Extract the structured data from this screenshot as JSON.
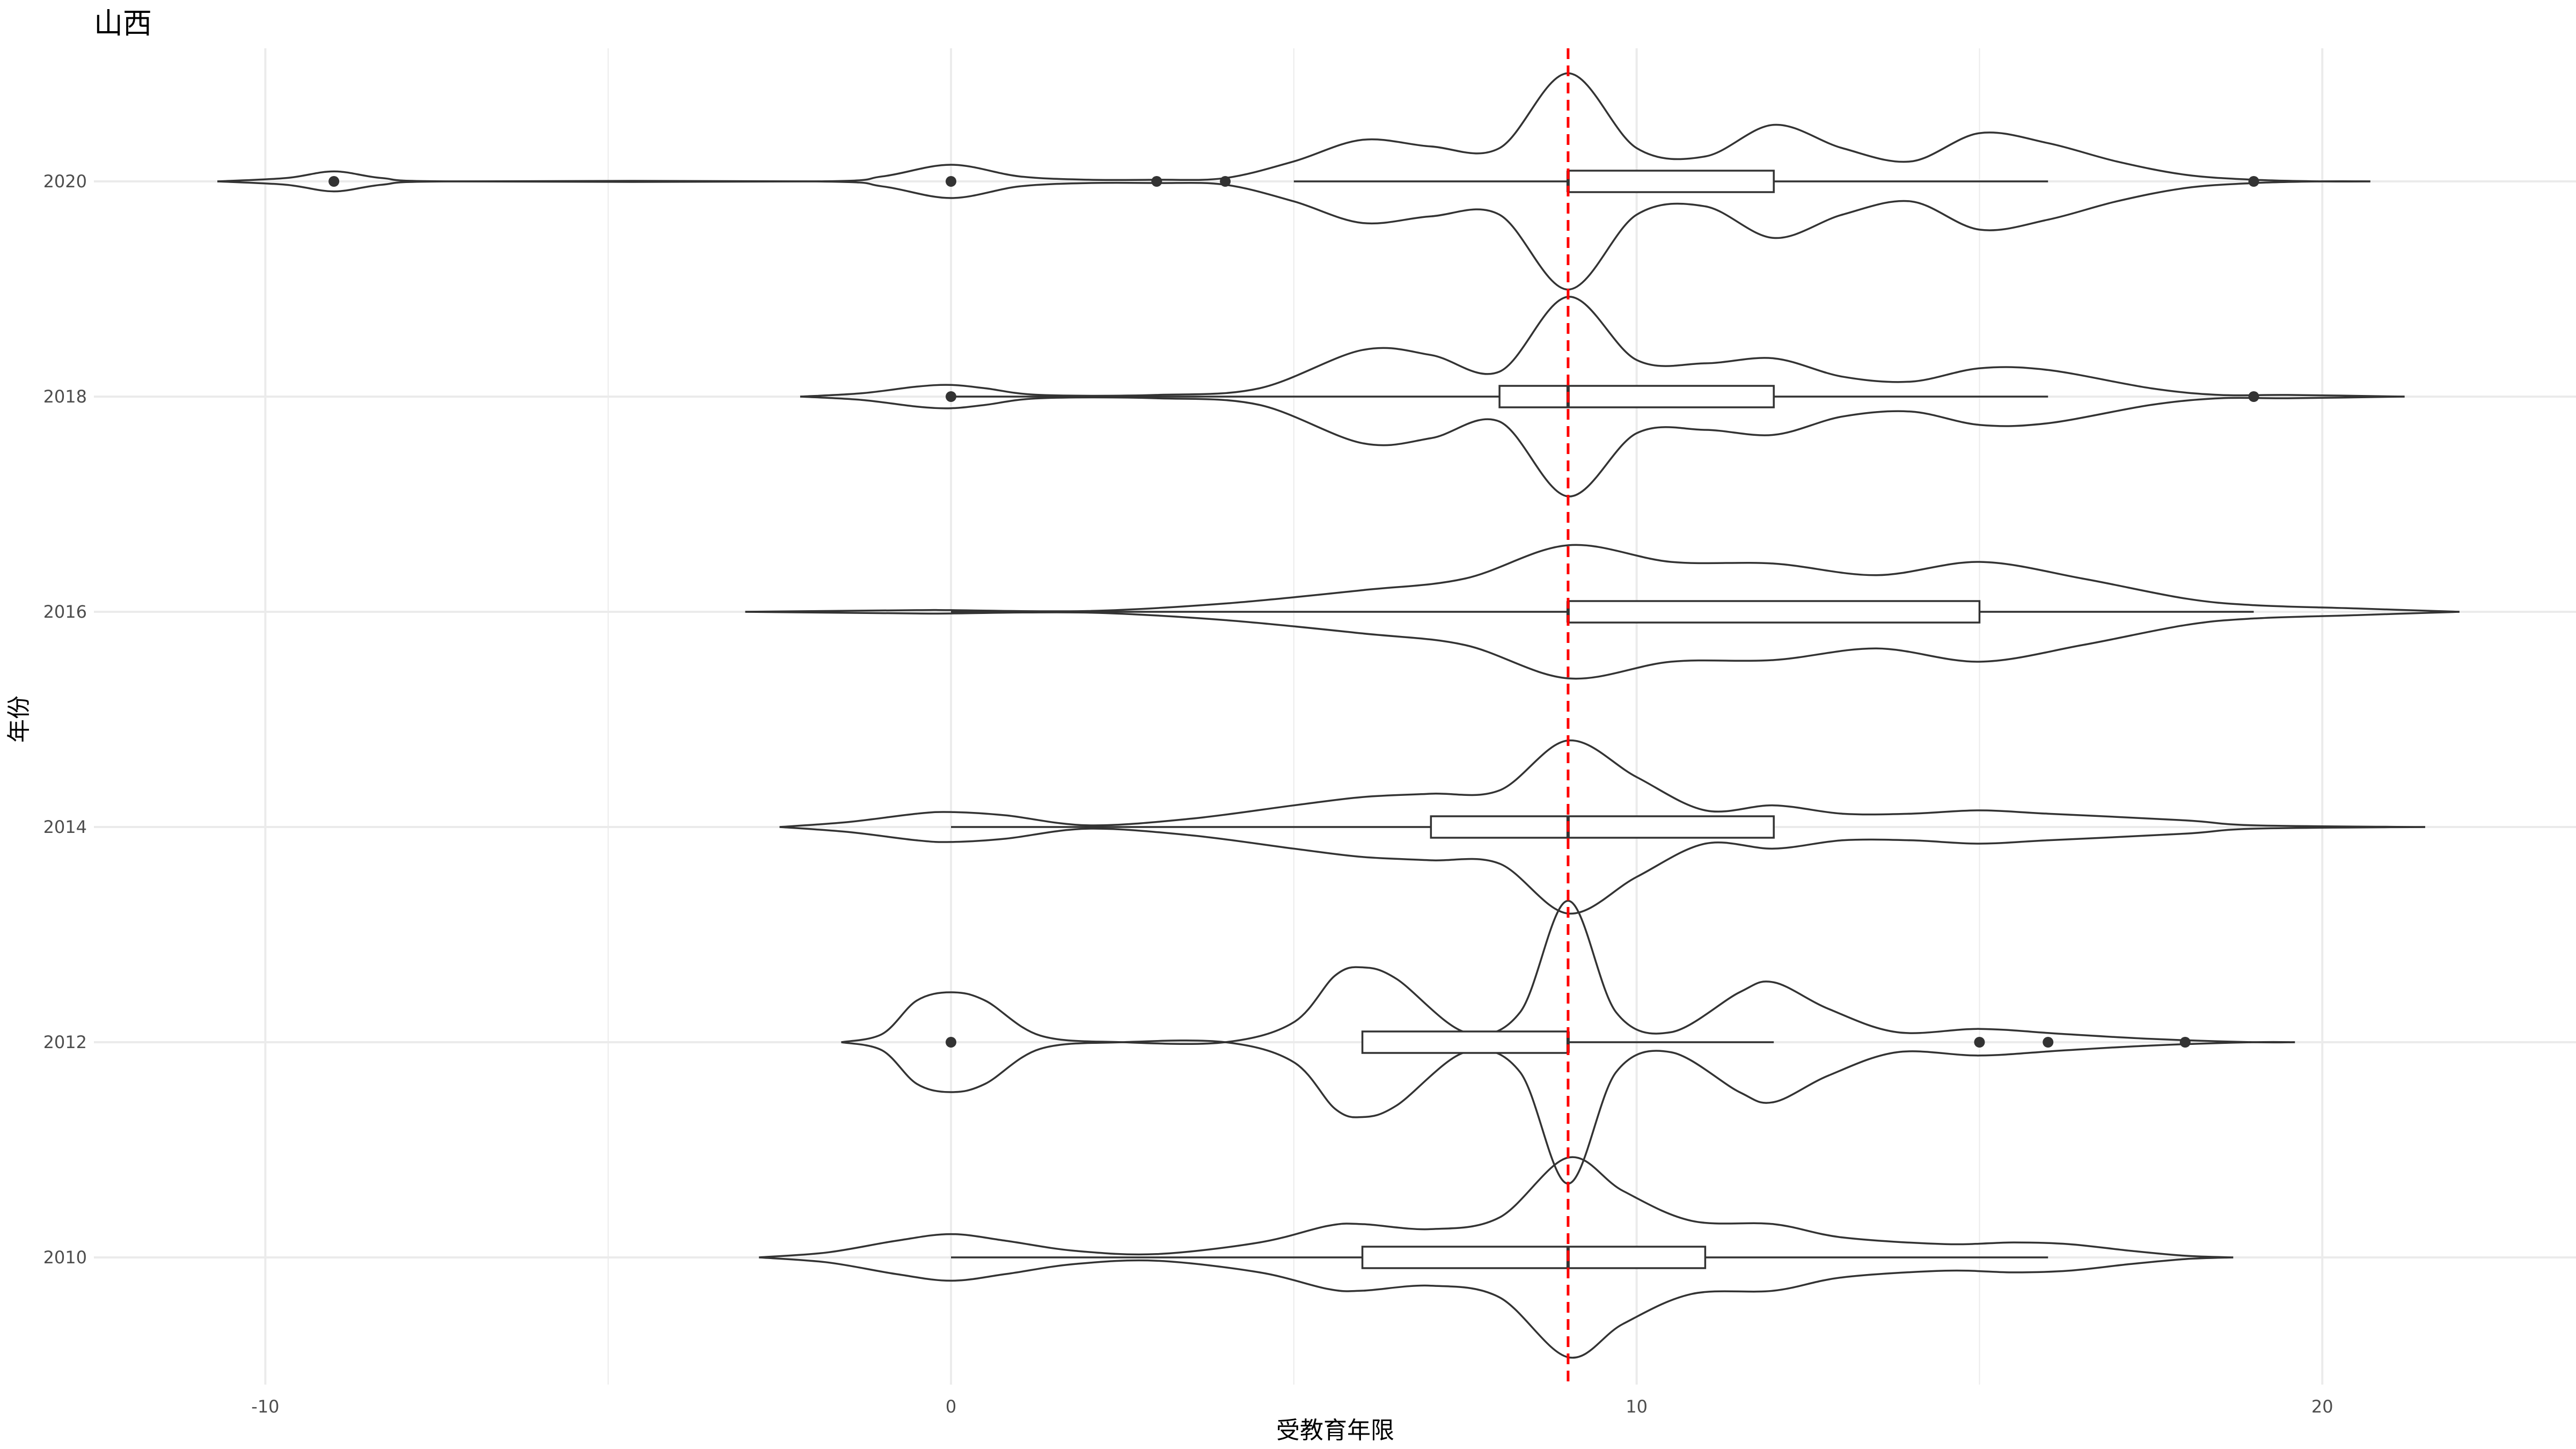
{
  "chart_data": {
    "type": "violin",
    "title": "山西",
    "xlabel": "受教育年限",
    "ylabel": "年份",
    "xlim": [
      -12.5,
      23.7
    ],
    "x_ticks": [
      -10,
      0,
      10,
      20
    ],
    "x_tick_labels": [
      "-10",
      "0",
      "10",
      "20"
    ],
    "categories": [
      "2010",
      "2012",
      "2014",
      "2016",
      "2018",
      "2020"
    ],
    "reference_line": {
      "x": 9,
      "color": "#ff0000",
      "style": "dashed"
    },
    "grid": true,
    "legend": "none",
    "series": [
      {
        "year": "2010",
        "violin_range": [
          -2.8,
          18.7
        ],
        "density": [
          [
            -2.8,
            0
          ],
          [
            -1.8,
            0.03
          ],
          [
            -0.8,
            0.1
          ],
          [
            0,
            0.14
          ],
          [
            0.8,
            0.1
          ],
          [
            1.8,
            0.04
          ],
          [
            3,
            0.02
          ],
          [
            4.5,
            0.09
          ],
          [
            5.5,
            0.19
          ],
          [
            6,
            0.2
          ],
          [
            7,
            0.17
          ],
          [
            8,
            0.24
          ],
          [
            9,
            0.6
          ],
          [
            9.8,
            0.4
          ],
          [
            10.8,
            0.22
          ],
          [
            12,
            0.2
          ],
          [
            13,
            0.12
          ],
          [
            14.5,
            0.08
          ],
          [
            15.5,
            0.09
          ],
          [
            16.3,
            0.08
          ],
          [
            17.2,
            0.04
          ],
          [
            18,
            0.01
          ],
          [
            18.7,
            0
          ]
        ],
        "box": {
          "q1": 6,
          "median": 9,
          "q3": 11,
          "whisker_low": 0,
          "whisker_high": 16
        },
        "outliers": []
      },
      {
        "year": "2012",
        "violin_range": [
          -1.6,
          19.6
        ],
        "density": [
          [
            -1.6,
            0
          ],
          [
            -1,
            0.05
          ],
          [
            -0.5,
            0.25
          ],
          [
            0,
            0.3
          ],
          [
            0.5,
            0.25
          ],
          [
            1.3,
            0.04
          ],
          [
            2.5,
            0
          ],
          [
            4,
            0
          ],
          [
            5,
            0.12
          ],
          [
            5.6,
            0.4
          ],
          [
            6,
            0.45
          ],
          [
            6.5,
            0.38
          ],
          [
            7.5,
            0.06
          ],
          [
            8.3,
            0.18
          ],
          [
            9,
            0.85
          ],
          [
            9.7,
            0.18
          ],
          [
            10.5,
            0.06
          ],
          [
            11.5,
            0.3
          ],
          [
            12,
            0.36
          ],
          [
            12.8,
            0.2
          ],
          [
            13.8,
            0.06
          ],
          [
            15,
            0.08
          ],
          [
            16.2,
            0.05
          ],
          [
            17.5,
            0.02
          ],
          [
            19,
            0
          ],
          [
            19.6,
            0
          ]
        ],
        "box": {
          "q1": 6,
          "median": 9,
          "q3": 9,
          "whisker_low": 6,
          "whisker_high": 12
        },
        "outliers": [
          0,
          15,
          16,
          18
        ]
      },
      {
        "year": "2014",
        "violin_range": [
          -2.5,
          21.5
        ],
        "density": [
          [
            -2.5,
            0
          ],
          [
            -1.5,
            0.03
          ],
          [
            -0.5,
            0.08
          ],
          [
            0,
            0.09
          ],
          [
            0.8,
            0.07
          ],
          [
            2,
            0.01
          ],
          [
            3.5,
            0.05
          ],
          [
            5,
            0.13
          ],
          [
            6,
            0.18
          ],
          [
            7,
            0.2
          ],
          [
            8,
            0.22
          ],
          [
            9,
            0.52
          ],
          [
            10,
            0.3
          ],
          [
            11,
            0.1
          ],
          [
            12,
            0.13
          ],
          [
            13,
            0.08
          ],
          [
            14,
            0.08
          ],
          [
            15,
            0.1
          ],
          [
            16,
            0.08
          ],
          [
            18,
            0.04
          ],
          [
            19,
            0.01
          ],
          [
            21.5,
            0
          ]
        ],
        "box": {
          "q1": 7,
          "median": 9,
          "q3": 12,
          "whisker_low": 0,
          "whisker_high": 12
        },
        "outliers": []
      },
      {
        "year": "2016",
        "violin_range": [
          -3,
          22
        ],
        "density": [
          [
            -3,
            0
          ],
          [
            -0.5,
            0.01
          ],
          [
            0,
            0.01
          ],
          [
            2,
            0.005
          ],
          [
            4,
            0.05
          ],
          [
            6,
            0.13
          ],
          [
            7.5,
            0.2
          ],
          [
            9,
            0.4
          ],
          [
            10.5,
            0.3
          ],
          [
            12,
            0.29
          ],
          [
            13.5,
            0.22
          ],
          [
            15,
            0.3
          ],
          [
            16.5,
            0.2
          ],
          [
            18,
            0.08
          ],
          [
            19,
            0.04
          ],
          [
            20.5,
            0.02
          ],
          [
            22,
            0
          ]
        ],
        "box": {
          "q1": 9,
          "median": 9,
          "q3": 15,
          "whisker_low": 0,
          "whisker_high": 19
        },
        "outliers": []
      },
      {
        "year": "2018",
        "violin_range": [
          -2.2,
          21.2
        ],
        "density": [
          [
            -2.2,
            0
          ],
          [
            -1.3,
            0.02
          ],
          [
            -0.5,
            0.06
          ],
          [
            0,
            0.07
          ],
          [
            0.5,
            0.05
          ],
          [
            1.3,
            0.01
          ],
          [
            3,
            0.01
          ],
          [
            4.5,
            0.05
          ],
          [
            6,
            0.28
          ],
          [
            7,
            0.25
          ],
          [
            8,
            0.15
          ],
          [
            9,
            0.6
          ],
          [
            10,
            0.22
          ],
          [
            11,
            0.2
          ],
          [
            12,
            0.23
          ],
          [
            13,
            0.12
          ],
          [
            14,
            0.09
          ],
          [
            15,
            0.17
          ],
          [
            16,
            0.16
          ],
          [
            17.5,
            0.05
          ],
          [
            18.5,
            0.01
          ],
          [
            19.5,
            0.01
          ],
          [
            21.2,
            0
          ]
        ],
        "box": {
          "q1": 8,
          "median": 9,
          "q3": 12,
          "whisker_low": 0,
          "whisker_high": 16
        },
        "outliers": [
          0,
          19
        ]
      },
      {
        "year": "2020",
        "violin_range": [
          -10.7,
          20.7
        ],
        "density": [
          [
            -10.7,
            0
          ],
          [
            -9.7,
            0.02
          ],
          [
            -9,
            0.06
          ],
          [
            -8.3,
            0.02
          ],
          [
            -7.3,
            0
          ],
          [
            -2,
            0
          ],
          [
            -1,
            0.03
          ],
          [
            0,
            0.1
          ],
          [
            1,
            0.03
          ],
          [
            2,
            0.01
          ],
          [
            3,
            0.01
          ],
          [
            4,
            0.02
          ],
          [
            5,
            0.12
          ],
          [
            6,
            0.25
          ],
          [
            7,
            0.21
          ],
          [
            8,
            0.2
          ],
          [
            9,
            0.65
          ],
          [
            10,
            0.2
          ],
          [
            11,
            0.15
          ],
          [
            12,
            0.34
          ],
          [
            13,
            0.2
          ],
          [
            14,
            0.12
          ],
          [
            15,
            0.29
          ],
          [
            16,
            0.23
          ],
          [
            17,
            0.12
          ],
          [
            18,
            0.04
          ],
          [
            19,
            0.01
          ],
          [
            20,
            0
          ],
          [
            20.7,
            0
          ]
        ],
        "box": {
          "q1": 9,
          "median": 9,
          "q3": 12,
          "whisker_low": 5,
          "whisker_high": 16
        },
        "outliers": [
          -9,
          0,
          3,
          4,
          19
        ]
      }
    ]
  }
}
